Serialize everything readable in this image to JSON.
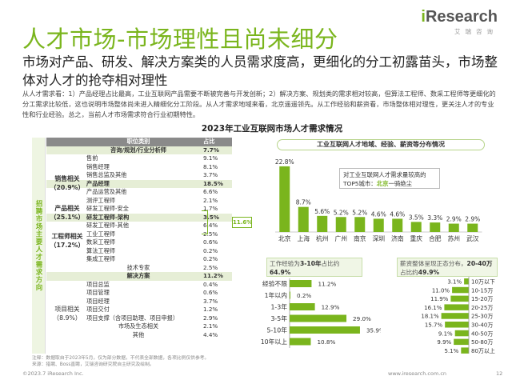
{
  "title": "人才市场-市场理性且尚未细分",
  "logo": {
    "brand_i": "i",
    "brand_rest": "Research",
    "sub": "艾瑞咨询"
  },
  "headline": "市场对产品、研发、解决方案类的人员需求度高，更细化的分工初露苗头，市场整体对人才的抢夺相对理性",
  "body": "从人才需求看：1）产品经理占比最高，工业互联网产品需要不断被完善与开发创新；2）解决方案、规划类的需求相对较高，但算法工程师、数采工程师等更细化的分工需求比较低，这也说明市场整体尚未进入精细化分工阶段。从人才需求地域来看，北京遥遥领先。从工作经验和薪资看，市场整体相对理性，更关注人才的专业性和行业经验。总之，当前人才市场需求符合行业初期特性。",
  "table": {
    "title": "2023年工业互联网市场人才需求情况",
    "side_label": "招聘市场主要人才需求方向",
    "header": {
      "category": "职位类别",
      "share": "占比"
    },
    "rows": [
      {
        "name": "咨询/规划/行业分析师",
        "value": "7.7%",
        "bold": true,
        "center": true
      },
      {
        "name": "售前",
        "value": "9.1%"
      },
      {
        "name": "销售经理",
        "value": "8.1%"
      },
      {
        "name": "销售总监及其他",
        "value": "3.7%"
      },
      {
        "name": "产品经理",
        "value": "18.5%",
        "bold": true
      },
      {
        "name": "产品运营及其他",
        "value": "6.6%"
      },
      {
        "name": "测评工程师",
        "value": "2.1%"
      },
      {
        "name": "研发工程师-安全",
        "value": "1.7%"
      },
      {
        "name": "研发工程师-架构",
        "value": "3.5%",
        "bold": true
      },
      {
        "name": "研发工程师-其他",
        "value": "6.4%"
      },
      {
        "name": "工业工程师",
        "value": "2.5%"
      },
      {
        "name": "数采工程师",
        "value": "0.6%"
      },
      {
        "name": "算法工程师",
        "value": "0.2%"
      },
      {
        "name": "集成工程师",
        "value": "0.2%"
      },
      {
        "name": "技术专家",
        "value": "2.5%",
        "center": true
      },
      {
        "name": "解决方案",
        "value": "11.2%",
        "bold": true,
        "center": true
      },
      {
        "name": "项目总监",
        "value": "0.4%"
      },
      {
        "name": "项目管理",
        "value": "0.6%"
      },
      {
        "name": "项目经理",
        "value": "3.7%"
      },
      {
        "name": "项目交付",
        "value": "1.2%"
      },
      {
        "name": "项目支撑（含项目助理、项目申报）",
        "value": "2.9%"
      },
      {
        "name": "市场及生态相关",
        "value": "2.1%",
        "center": true
      },
      {
        "name": "其他",
        "value": "4.4%",
        "center": true
      }
    ],
    "groups": [
      {
        "name": "销售相关",
        "share": "（20.9%）"
      },
      {
        "name": "产品相关",
        "share": "（25.1%）"
      },
      {
        "name": "工程师相关",
        "share": "（17.2%）"
      },
      {
        "name": "项目相关",
        "share": "（8.9%）"
      }
    ],
    "bracket_value": "11.6%"
  },
  "colors": {
    "accent": "#7ab51d",
    "header_gray": "#8a8a8a",
    "highlight": "#e6eed6"
  },
  "chart_data": [
    {
      "type": "bar",
      "title": "工业互联网人才地域、经验、薪资等分布情况",
      "categories": [
        "北京",
        "上海",
        "杭州",
        "广州",
        "南京",
        "深圳",
        "济南",
        "重庆",
        "合肥",
        "苏州",
        "武汉"
      ],
      "values": [
        22.8,
        8.7,
        5.6,
        5.2,
        5.2,
        4.6,
        4.6,
        3.5,
        3.3,
        2.9,
        2.9
      ],
      "value_labels": [
        "22.8%",
        "8.7%",
        "5.6%",
        "5.2%",
        "5.2%",
        "4.6%",
        "4.6%",
        "3.5%",
        "3.3%",
        "2.9%",
        "2.9%"
      ],
      "ylim": [
        0,
        25
      ],
      "callout_prefix": "对工业互联网人才需求量较高的TOP5城市：",
      "callout_city": "北京",
      "callout_suffix": "一骑绝尘"
    },
    {
      "type": "bar",
      "orientation": "horizontal",
      "note_prefix": "工作经验为",
      "note_highlight": "3-10年",
      "note_mid": "占比约",
      "note_value": "64.9%",
      "categories": [
        "经验不限",
        "1年以内",
        "1-3年",
        "3-5年",
        "5-10年",
        "10年以上"
      ],
      "values": [
        11.2,
        0.2,
        12.9,
        29.0,
        35.9,
        10.8
      ],
      "value_labels": [
        "11.2%",
        "0.2%",
        "12.9%",
        "29.0%",
        "35.9%",
        "10.8%"
      ],
      "xlim": [
        0,
        40
      ]
    },
    {
      "type": "bar",
      "orientation": "horizontal-diverging",
      "note_prefix": "薪资整体呈现正态分布，",
      "note_highlight": "20-40万",
      "note_mid": "占比约",
      "note_value": "49.9%",
      "categories": [
        "10万以下",
        "10-15万",
        "15-20万",
        "20-25万",
        "25-30万",
        "30-40万",
        "40-50万",
        "50-80万",
        "80万以上"
      ],
      "values": [
        3.1,
        11.0,
        11.9,
        16.1,
        18.1,
        15.7,
        9.1,
        9.9,
        5.1
      ],
      "value_labels": [
        "3.1%",
        "11.0%",
        "11.9%",
        "16.1%",
        "18.1%",
        "15.7%",
        "9.1%",
        "9.9%",
        "5.1%"
      ],
      "xlim": [
        0,
        20
      ]
    }
  ],
  "note": "注释：数据取自于2023年5月，仅为部分数据，不代表全部数据，各项比例仅供参考。\n来源：猎聘、Boss直聘，艾瑞咨询研究院自主研究及绘制。",
  "footer_left": "©2023.7 iResearch Inc.",
  "footer_right": "www.iresearch.com.cn",
  "page_number": "12"
}
